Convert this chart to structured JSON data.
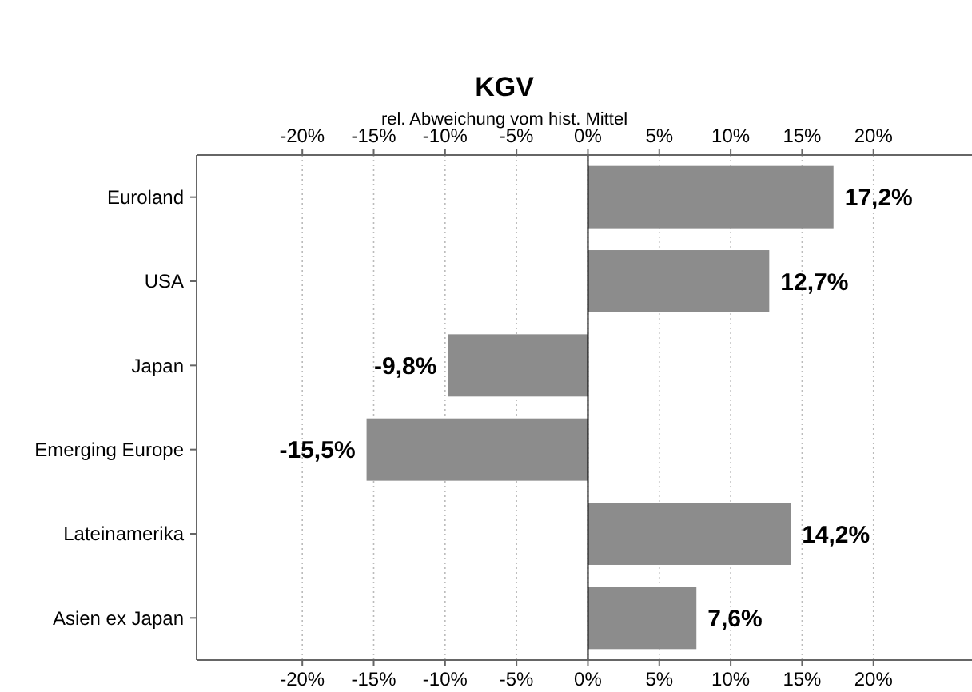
{
  "chart_data": {
    "type": "bar",
    "orientation": "horizontal",
    "title": "KGV",
    "subtitle": "rel. Abweichung vom hist. Mittel",
    "categories": [
      "Euroland",
      "USA",
      "Japan",
      "Emerging Europe",
      "Lateinamerika",
      "Asien ex Japan"
    ],
    "values": [
      17.2,
      12.7,
      -9.8,
      -15.5,
      14.2,
      7.6
    ],
    "value_labels": [
      "17,2%",
      "12,7%",
      "-9,8%",
      "-15,5%",
      "14,2%",
      "7,6%"
    ],
    "color": "#8c8c8c",
    "xlim": [
      -27.4,
      26.9
    ],
    "xticks": [
      {
        "value": -20,
        "label": "-20%"
      },
      {
        "value": -15,
        "label": "-15%"
      },
      {
        "value": -10,
        "label": "-10%"
      },
      {
        "value": -5,
        "label": "-5%"
      },
      {
        "value": 0,
        "label": "0%"
      },
      {
        "value": 5,
        "label": "5%"
      },
      {
        "value": 10,
        "label": "10%"
      },
      {
        "value": 15,
        "label": "15%"
      },
      {
        "value": 20,
        "label": "20%"
      }
    ],
    "x2lim": [
      -27.4,
      26.9
    ],
    "x2ticks": [
      {
        "value": -20,
        "label": "-20%"
      },
      {
        "value": -15,
        "label": "-15%"
      },
      {
        "value": -10,
        "label": "-10%"
      },
      {
        "value": -5,
        "label": "-5%"
      },
      {
        "value": 0,
        "label": "0%"
      },
      {
        "value": 5,
        "label": "5%"
      },
      {
        "value": 10,
        "label": "10%"
      },
      {
        "value": 15,
        "label": "15%"
      },
      {
        "value": 20,
        "label": "20%"
      }
    ],
    "ref_lines": [
      {
        "axis": "x",
        "value": 0,
        "color": "#000000"
      }
    ],
    "grid": "x"
  }
}
